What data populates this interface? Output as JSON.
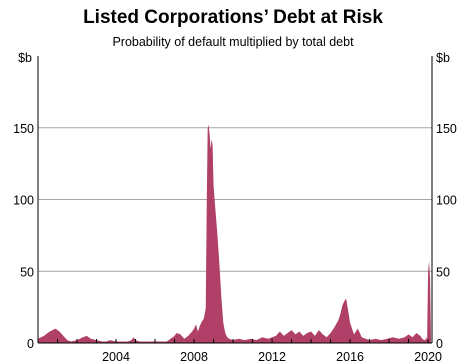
{
  "chart_data": {
    "type": "area",
    "title": "Listed Corporations’ Debt at Risk",
    "subtitle": "Probability of default multiplied by total debt",
    "y_unit_left": "$b",
    "y_unit_right": "$b",
    "xlim": [
      2000.0,
      2020.2
    ],
    "ylim": [
      0,
      200
    ],
    "y_ticks": [
      0,
      50,
      100,
      150
    ],
    "x_ticks": [
      2004,
      2008,
      2012,
      2016,
      2020
    ],
    "grid": "horizontal",
    "color": "#b04068",
    "series": [
      {
        "x": [
          2000.0,
          2000.3,
          2000.6,
          2000.9,
          2001.1,
          2001.3,
          2001.5,
          2001.7,
          2002.0,
          2002.3,
          2002.5,
          2002.7,
          2003.0,
          2003.3,
          2003.5,
          2003.7,
          2004.0,
          2004.3,
          2004.6,
          2004.8,
          2004.9,
          2005.0,
          2005.2,
          2005.4,
          2005.6,
          2005.8,
          2006.0,
          2006.3,
          2006.6,
          2006.8,
          2007.0,
          2007.1,
          2007.3,
          2007.5,
          2007.7,
          2007.9,
          2008.0,
          2008.1,
          2008.2,
          2008.3,
          2008.4,
          2008.5,
          2008.6,
          2008.65,
          2008.7,
          2008.75,
          2008.8,
          2008.85,
          2008.9,
          2008.95,
          2009.0,
          2009.1,
          2009.2,
          2009.3,
          2009.4,
          2009.5,
          2009.6,
          2009.7,
          2009.8,
          2010.0,
          2010.3,
          2010.6,
          2010.9,
          2011.2,
          2011.5,
          2011.8,
          2012.0,
          2012.2,
          2012.4,
          2012.6,
          2012.8,
          2013.0,
          2013.2,
          2013.4,
          2013.6,
          2013.8,
          2014.0,
          2014.2,
          2014.4,
          2014.6,
          2014.8,
          2015.0,
          2015.2,
          2015.4,
          2015.5,
          2015.6,
          2015.7,
          2015.8,
          2016.0,
          2016.2,
          2016.4,
          2016.6,
          2016.8,
          2017.0,
          2017.3,
          2017.6,
          2017.9,
          2018.2,
          2018.5,
          2018.8,
          2019.0,
          2019.2,
          2019.4,
          2019.6,
          2019.7,
          2019.8,
          2019.85,
          2019.9,
          2019.95,
          2020.0,
          2020.05,
          2020.1,
          2020.15
        ],
        "values": [
          3,
          5,
          8,
          10,
          8,
          5,
          2,
          1,
          2,
          4,
          5,
          3,
          2,
          1,
          1,
          2,
          1,
          1,
          1,
          2,
          4,
          2,
          1,
          1,
          1,
          1,
          1,
          1,
          1,
          3,
          5,
          7,
          6,
          3,
          5,
          8,
          10,
          13,
          8,
          12,
          15,
          17,
          24,
          95,
          150,
          152,
          145,
          135,
          142,
          138,
          110,
          92,
          75,
          55,
          32,
          14,
          7,
          4,
          3,
          2,
          3,
          2,
          3,
          2,
          4,
          3,
          4,
          5,
          8,
          5,
          7,
          9,
          6,
          8,
          5,
          7,
          8,
          5,
          9,
          6,
          4,
          7,
          11,
          16,
          20,
          26,
          29,
          31,
          14,
          6,
          10,
          4,
          3,
          2,
          3,
          2,
          3,
          4,
          3,
          4,
          6,
          4,
          7,
          5,
          3,
          2,
          2,
          4,
          2,
          50,
          57,
          45,
          3
        ]
      }
    ]
  }
}
